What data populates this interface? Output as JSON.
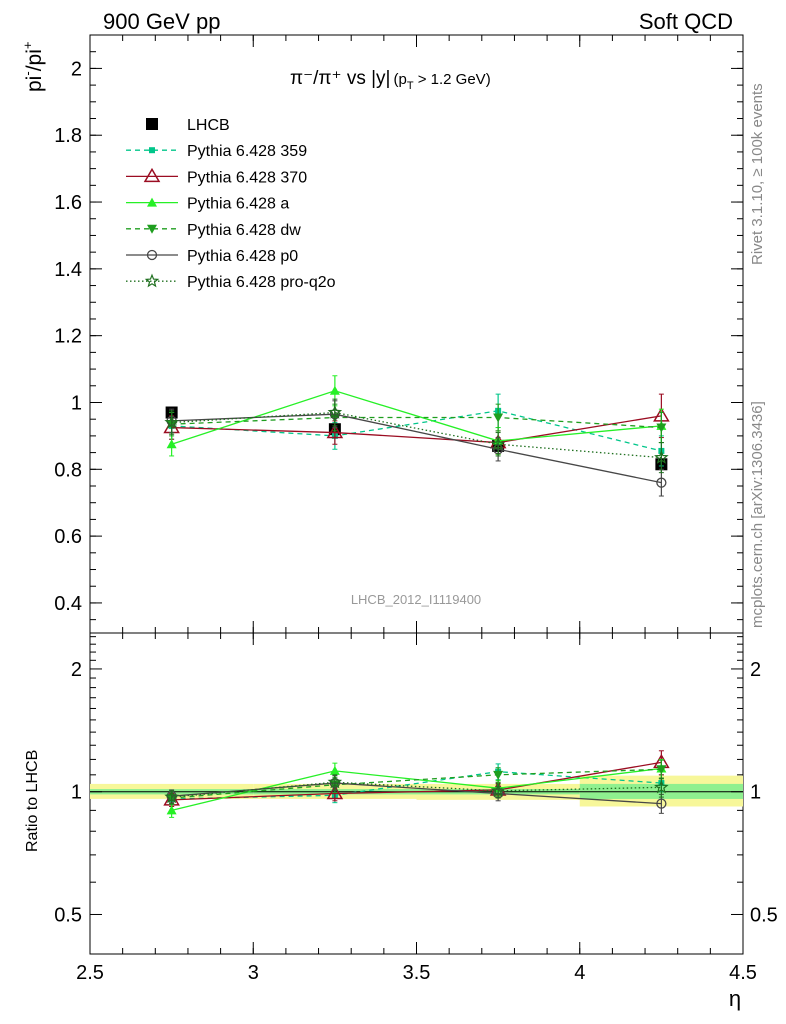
{
  "header": {
    "left": "900 GeV pp",
    "right": "Soft QCD"
  },
  "side_labels": {
    "rivet": "Rivet 3.1.10, ≥ 100k events",
    "mcplots": "mcplots.cern.ch [arXiv:1306.3436]"
  },
  "watermark": "LHCB_2012_I1119400",
  "colors": {
    "LHCB": "#000000",
    "Pythia 6.428 359": "#00c68a",
    "Pythia 6.428 370": "#9b0d22",
    "Pythia 6.428 a": "#26f026",
    "Pythia 6.428 dw": "#1f9e1f",
    "Pythia 6.428 p0": "#474747",
    "Pythia 6.428 pro-q2o": "#207020",
    "band_inner": "#8ff08f",
    "band_outer": "#f7f79a"
  },
  "chart_data": [
    {
      "type": "line",
      "panel": "main",
      "title": "π⁻/π⁺ vs |y| (pT > 1.2 GeV)",
      "title_parts": {
        "main": "π⁻/π⁺ vs |y|",
        "cut": "(p",
        "cut_sub": "T",
        "cut_rest": " > 1.2 GeV)"
      },
      "ylabel": "pi⁻/pi⁺",
      "ylabel_parts": {
        "base1": "pi",
        "sup1": "-",
        "sep": "/pi",
        "sup2": "+"
      },
      "xlim": [
        2.5,
        4.5
      ],
      "ylim": [
        0.31,
        2.1
      ],
      "y_ticks": [
        0.4,
        0.6,
        0.8,
        1.0,
        1.2,
        1.4,
        1.6,
        1.8,
        2.0
      ],
      "y_tick_labels": [
        "0.4",
        "0.6",
        "0.8",
        "1",
        "1.2",
        "1.4",
        "1.6",
        "1.8",
        "2"
      ],
      "legend_position": "top-left",
      "x": [
        2.75,
        3.25,
        3.75,
        4.25
      ],
      "series": [
        {
          "name": "LHCB",
          "marker": "square-filled",
          "line": "none",
          "values": [
            0.97,
            0.92,
            0.87,
            0.815
          ],
          "errors": [
            0.012,
            0.012,
            0.012,
            0.015
          ]
        },
        {
          "name": "Pythia 6.428 359",
          "marker": "square-small",
          "line": "dashed",
          "values": [
            0.93,
            0.9,
            0.975,
            0.855
          ],
          "errors": [
            0.04,
            0.04,
            0.05,
            0.045
          ]
        },
        {
          "name": "Pythia 6.428 370",
          "marker": "triangle-open",
          "line": "solid",
          "values": [
            0.925,
            0.91,
            0.88,
            0.96
          ],
          "errors": [
            0.035,
            0.035,
            0.035,
            0.065
          ]
        },
        {
          "name": "Pythia 6.428 a",
          "marker": "triangle-filled",
          "line": "solid",
          "values": [
            0.875,
            1.035,
            0.885,
            0.93
          ],
          "errors": [
            0.035,
            0.045,
            0.04,
            0.05
          ]
        },
        {
          "name": "Pythia 6.428 dw",
          "marker": "triangle-down-filled",
          "line": "dashed",
          "values": [
            0.935,
            0.955,
            0.955,
            0.925
          ],
          "errors": [
            0.035,
            0.04,
            0.04,
            0.045
          ]
        },
        {
          "name": "Pythia 6.428 p0",
          "marker": "circle-open",
          "line": "solid",
          "values": [
            0.945,
            0.965,
            0.86,
            0.76
          ],
          "errors": [
            0.035,
            0.04,
            0.035,
            0.04
          ]
        },
        {
          "name": "Pythia 6.428 pro-q2o",
          "marker": "star-open",
          "line": "dotted",
          "values": [
            0.94,
            0.97,
            0.875,
            0.835
          ],
          "errors": [
            0.035,
            0.04,
            0.035,
            0.045
          ]
        }
      ]
    },
    {
      "type": "line",
      "panel": "ratio",
      "ylabel": "Ratio to LHCB",
      "xlabel": "η",
      "xlim": [
        2.5,
        4.5
      ],
      "ylim": [
        0.4,
        2.45
      ],
      "y_scale": "log",
      "x_ticks": [
        2.5,
        3,
        3.5,
        4,
        4.5
      ],
      "x_tick_labels": [
        "2.5",
        "3",
        "3.5",
        "4",
        "4.5"
      ],
      "y_ticks": [
        0.5,
        1,
        2
      ],
      "y_tick_labels": [
        "0.5",
        "1",
        "2"
      ],
      "bands": [
        {
          "x_range": [
            2.5,
            3.0
          ],
          "inner": [
            0.985,
            1.015
          ],
          "outer": [
            0.96,
            1.045
          ]
        },
        {
          "x_range": [
            3.0,
            3.5
          ],
          "inner": [
            0.985,
            1.015
          ],
          "outer": [
            0.96,
            1.045
          ]
        },
        {
          "x_range": [
            3.5,
            4.0
          ],
          "inner": [
            0.985,
            1.015
          ],
          "outer": [
            0.955,
            1.045
          ]
        },
        {
          "x_range": [
            4.0,
            4.5
          ],
          "inner": [
            0.96,
            1.045
          ],
          "outer": [
            0.92,
            1.095
          ]
        }
      ],
      "x": [
        2.75,
        3.25,
        3.75,
        4.25
      ],
      "series": [
        {
          "name": "Pythia 6.428 359",
          "values": [
            0.96,
            0.98,
            1.12,
            1.05
          ],
          "errors": [
            0.04,
            0.04,
            0.05,
            0.05
          ]
        },
        {
          "name": "Pythia 6.428 370",
          "values": [
            0.955,
            0.99,
            1.01,
            1.18
          ],
          "errors": [
            0.035,
            0.04,
            0.04,
            0.08
          ]
        },
        {
          "name": "Pythia 6.428 a",
          "values": [
            0.9,
            1.125,
            1.02,
            1.14
          ],
          "errors": [
            0.035,
            0.05,
            0.045,
            0.06
          ]
        },
        {
          "name": "Pythia 6.428 dw",
          "values": [
            0.965,
            1.04,
            1.1,
            1.135
          ],
          "errors": [
            0.035,
            0.045,
            0.045,
            0.06
          ]
        },
        {
          "name": "Pythia 6.428 p0",
          "values": [
            0.975,
            1.05,
            0.99,
            0.935
          ],
          "errors": [
            0.035,
            0.045,
            0.04,
            0.05
          ]
        },
        {
          "name": "Pythia 6.428 pro-q2o",
          "values": [
            0.97,
            1.055,
            1.005,
            1.025
          ],
          "errors": [
            0.035,
            0.045,
            0.04,
            0.055
          ]
        }
      ]
    }
  ]
}
